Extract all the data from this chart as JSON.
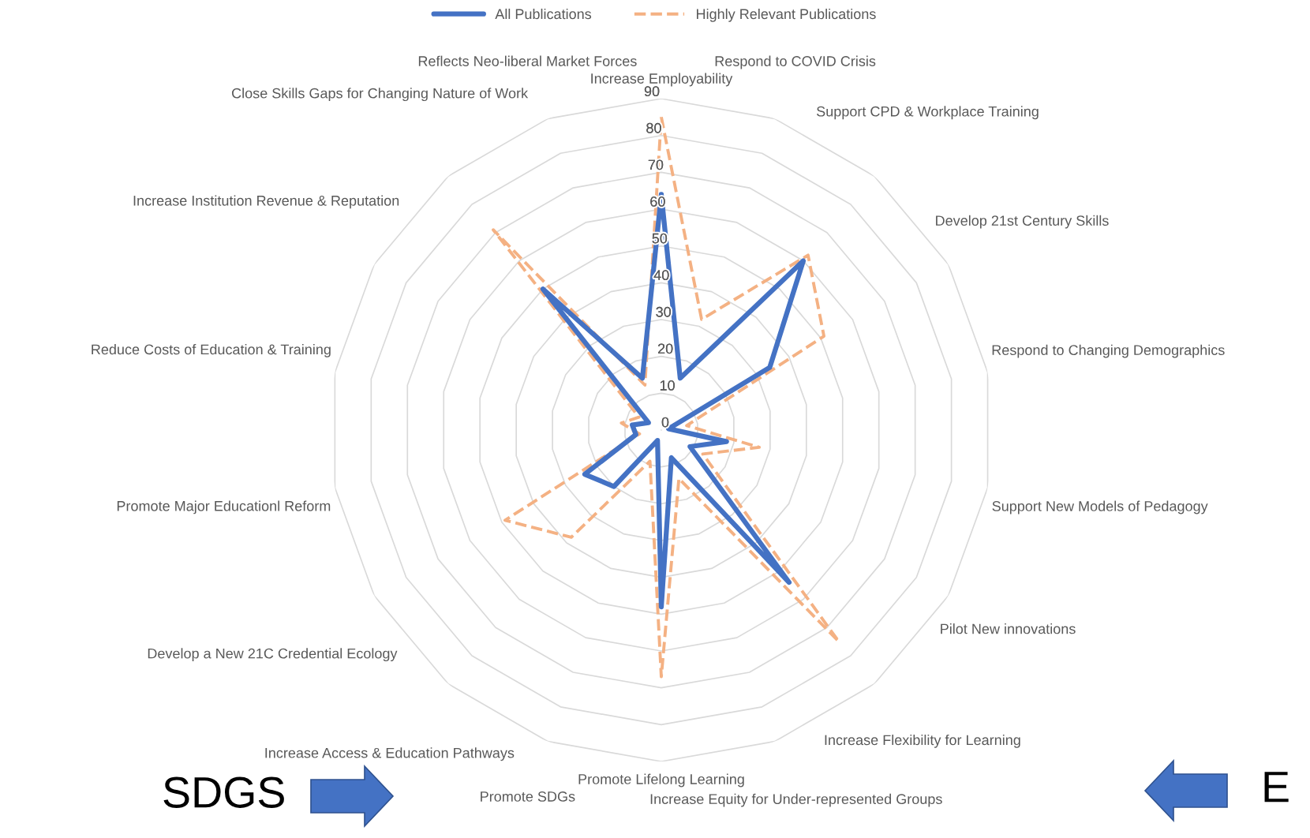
{
  "chart_data": {
    "type": "radar",
    "categories": [
      "Increase Employability",
      "Respond to COVID Crisis",
      "Support CPD & Workplace Training",
      "Develop 21st Century Skills",
      "Respond to Changing Demographics",
      "Support New Models of Pedagogy",
      "Pilot New innovations",
      "Increase Flexibility for Learning",
      "Increase Equity for Under-represented Groups",
      "Promote Lifelong Learning",
      "Promote SDGs",
      "Increase Access & Education Pathways",
      "Develop a New 21C Credential Ecology",
      "Promote Major Educationl Reform",
      "Reduce Costs of Education & Training",
      "Increase Institution Revenue & Reputation",
      "Close Skills Gaps for Changing Nature of Work",
      "Reflects Neo-liberal Market Forces"
    ],
    "series": [
      {
        "name": "All Publications",
        "color": "#4472c4",
        "line_style": "solid",
        "values": [
          64,
          15,
          60,
          34,
          2,
          18,
          9,
          54,
          8,
          48,
          3,
          20,
          24,
          7,
          8,
          4,
          50,
          15
        ]
      },
      {
        "name": "Highly Relevant Publications",
        "color": "#f4b183",
        "line_style": "dashed",
        "values": [
          85,
          32,
          62,
          51,
          7,
          27,
          13,
          75,
          14,
          67,
          9,
          38,
          49,
          6,
          11,
          7,
          71,
          13
        ]
      }
    ],
    "ylim": [
      0,
      90
    ],
    "yticks": [
      0,
      10,
      20,
      30,
      40,
      50,
      60,
      70,
      80,
      90
    ],
    "grid": true,
    "legend": "top",
    "marker": "none",
    "annotations": [
      "SDGS",
      "E"
    ]
  }
}
